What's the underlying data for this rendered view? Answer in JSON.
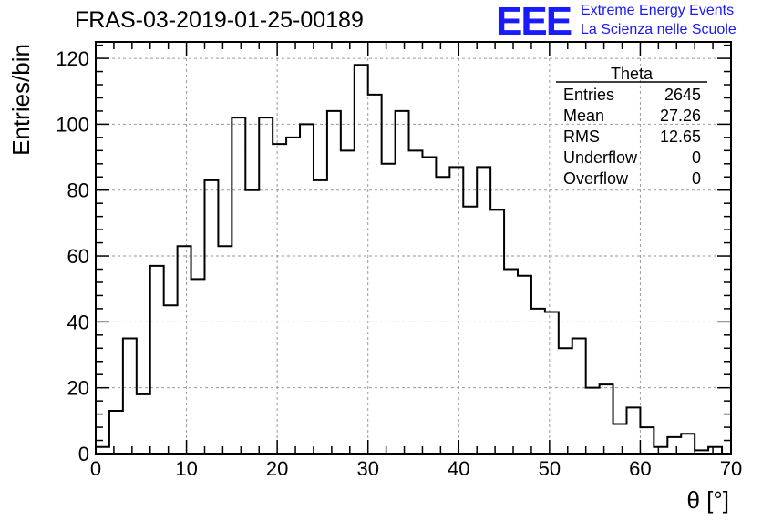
{
  "header": {
    "run_title": "FRAS-03-2019-01-25-00189",
    "logo_text": "EEE",
    "org_line1": "Extreme Energy Events",
    "org_line2": "La Scienza nelle Scuole"
  },
  "stats_box": {
    "title": "Theta",
    "rows": [
      {
        "label": "Entries",
        "value": "2645"
      },
      {
        "label": "Mean",
        "value": "27.26"
      },
      {
        "label": "RMS",
        "value": "12.65"
      },
      {
        "label": "Underflow",
        "value": "0"
      },
      {
        "label": "Overflow",
        "value": "0"
      }
    ]
  },
  "chart_data": {
    "type": "bar",
    "title": "FRAS-03-2019-01-25-00189",
    "xlabel": "θ [°]",
    "ylabel": "Entries/bin",
    "xlim": [
      0,
      70
    ],
    "ylim": [
      0,
      125
    ],
    "bin_width": 1.5,
    "x_ticks": [
      0,
      10,
      20,
      30,
      40,
      50,
      60,
      70
    ],
    "y_ticks": [
      0,
      20,
      40,
      60,
      80,
      100,
      120
    ],
    "grid": true,
    "line_color": "#000000",
    "values": [
      2,
      13,
      35,
      18,
      57,
      45,
      63,
      53,
      83,
      63,
      102,
      80,
      102,
      94,
      96,
      100,
      83,
      104,
      92,
      118,
      109,
      88,
      104,
      92,
      90,
      84,
      87,
      75,
      87,
      74,
      56,
      54,
      44,
      43,
      32,
      35,
      20,
      21,
      9,
      14,
      8,
      2,
      5,
      6,
      1,
      2,
      0
    ]
  }
}
